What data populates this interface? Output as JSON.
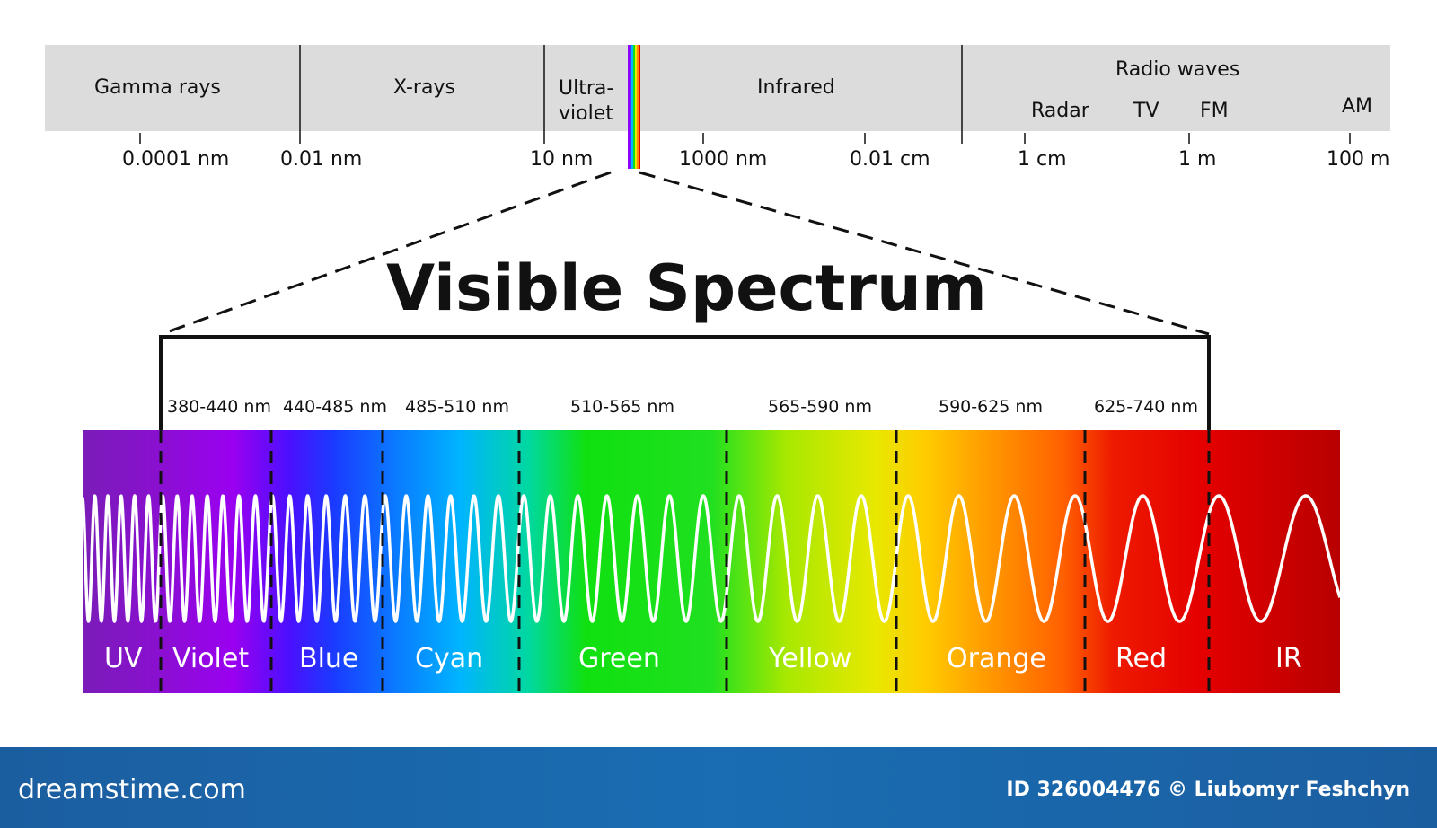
{
  "em_spectrum": {
    "bands": {
      "gamma": "Gamma rays",
      "xrays": "X-rays",
      "uv_line1": "Ultra-",
      "uv_line2": "violet",
      "infrared": "Infrared",
      "radio": "Radio waves",
      "radar": "Radar",
      "tv": "TV",
      "fm": "FM",
      "am": "AM"
    },
    "wavelengths": [
      "0.0001 nm",
      "0.01 nm",
      "10 nm",
      "1000 nm",
      "0.01 cm",
      "1 cm",
      "1 m",
      "100 m"
    ]
  },
  "visible": {
    "title": "Visible Spectrum",
    "ranges": [
      "380-440 nm",
      "440-485 nm",
      "485-510 nm",
      "510-565 nm",
      "565-590 nm",
      "590-625 nm",
      "625-740 nm"
    ],
    "colors": [
      "UV",
      "Violet",
      "Blue",
      "Cyan",
      "Green",
      "Yellow",
      "Orange",
      "Red",
      "IR"
    ]
  },
  "footer": {
    "logo": "dreamstime.com",
    "credit": "ID 326004476 © Liubomyr Feshchyn"
  },
  "palette": {
    "uv": "#7a1cb8",
    "violet": "#8f00ff",
    "blue": "#1a3bff",
    "cyan": "#00b4ff",
    "green": "#10e010",
    "yellow": "#e8e800",
    "orange": "#ff8c00",
    "red": "#e40000",
    "ir": "#b80000"
  }
}
